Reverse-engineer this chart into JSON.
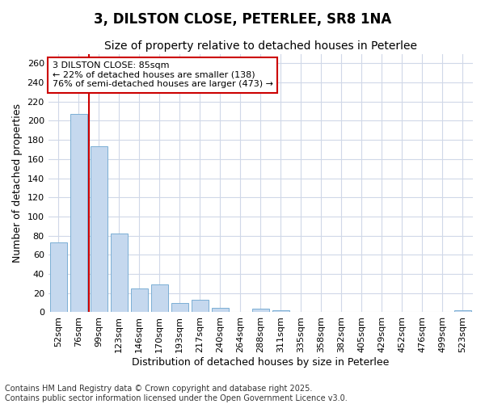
{
  "title": "3, DILSTON CLOSE, PETERLEE, SR8 1NA",
  "subtitle": "Size of property relative to detached houses in Peterlee",
  "xlabel": "Distribution of detached houses by size in Peterlee",
  "ylabel": "Number of detached properties",
  "categories": [
    "52sqm",
    "76sqm",
    "99sqm",
    "123sqm",
    "146sqm",
    "170sqm",
    "193sqm",
    "217sqm",
    "240sqm",
    "264sqm",
    "288sqm",
    "311sqm",
    "335sqm",
    "358sqm",
    "382sqm",
    "405sqm",
    "429sqm",
    "452sqm",
    "476sqm",
    "499sqm",
    "523sqm"
  ],
  "values": [
    73,
    207,
    173,
    82,
    25,
    29,
    10,
    13,
    5,
    0,
    4,
    2,
    0,
    0,
    0,
    0,
    0,
    0,
    0,
    0,
    2
  ],
  "bar_color": "#c5d8ee",
  "bar_edge_color": "#7bafd4",
  "vline_x": 1.5,
  "vline_color": "#cc0000",
  "annotation_box_text": "3 DILSTON CLOSE: 85sqm\n← 22% of detached houses are smaller (138)\n76% of semi-detached houses are larger (473) →",
  "annotation_box_color": "#cc0000",
  "annotation_box_fill": "#ffffff",
  "ylim": [
    0,
    270
  ],
  "yticks": [
    0,
    20,
    40,
    60,
    80,
    100,
    120,
    140,
    160,
    180,
    200,
    220,
    240,
    260
  ],
  "background_color": "#ffffff",
  "plot_background_color": "#ffffff",
  "grid_color": "#d0d8e8",
  "footer_line1": "Contains HM Land Registry data © Crown copyright and database right 2025.",
  "footer_line2": "Contains public sector information licensed under the Open Government Licence v3.0.",
  "title_fontsize": 12,
  "subtitle_fontsize": 10,
  "axis_label_fontsize": 9,
  "tick_fontsize": 8,
  "annotation_fontsize": 8,
  "footer_fontsize": 7
}
